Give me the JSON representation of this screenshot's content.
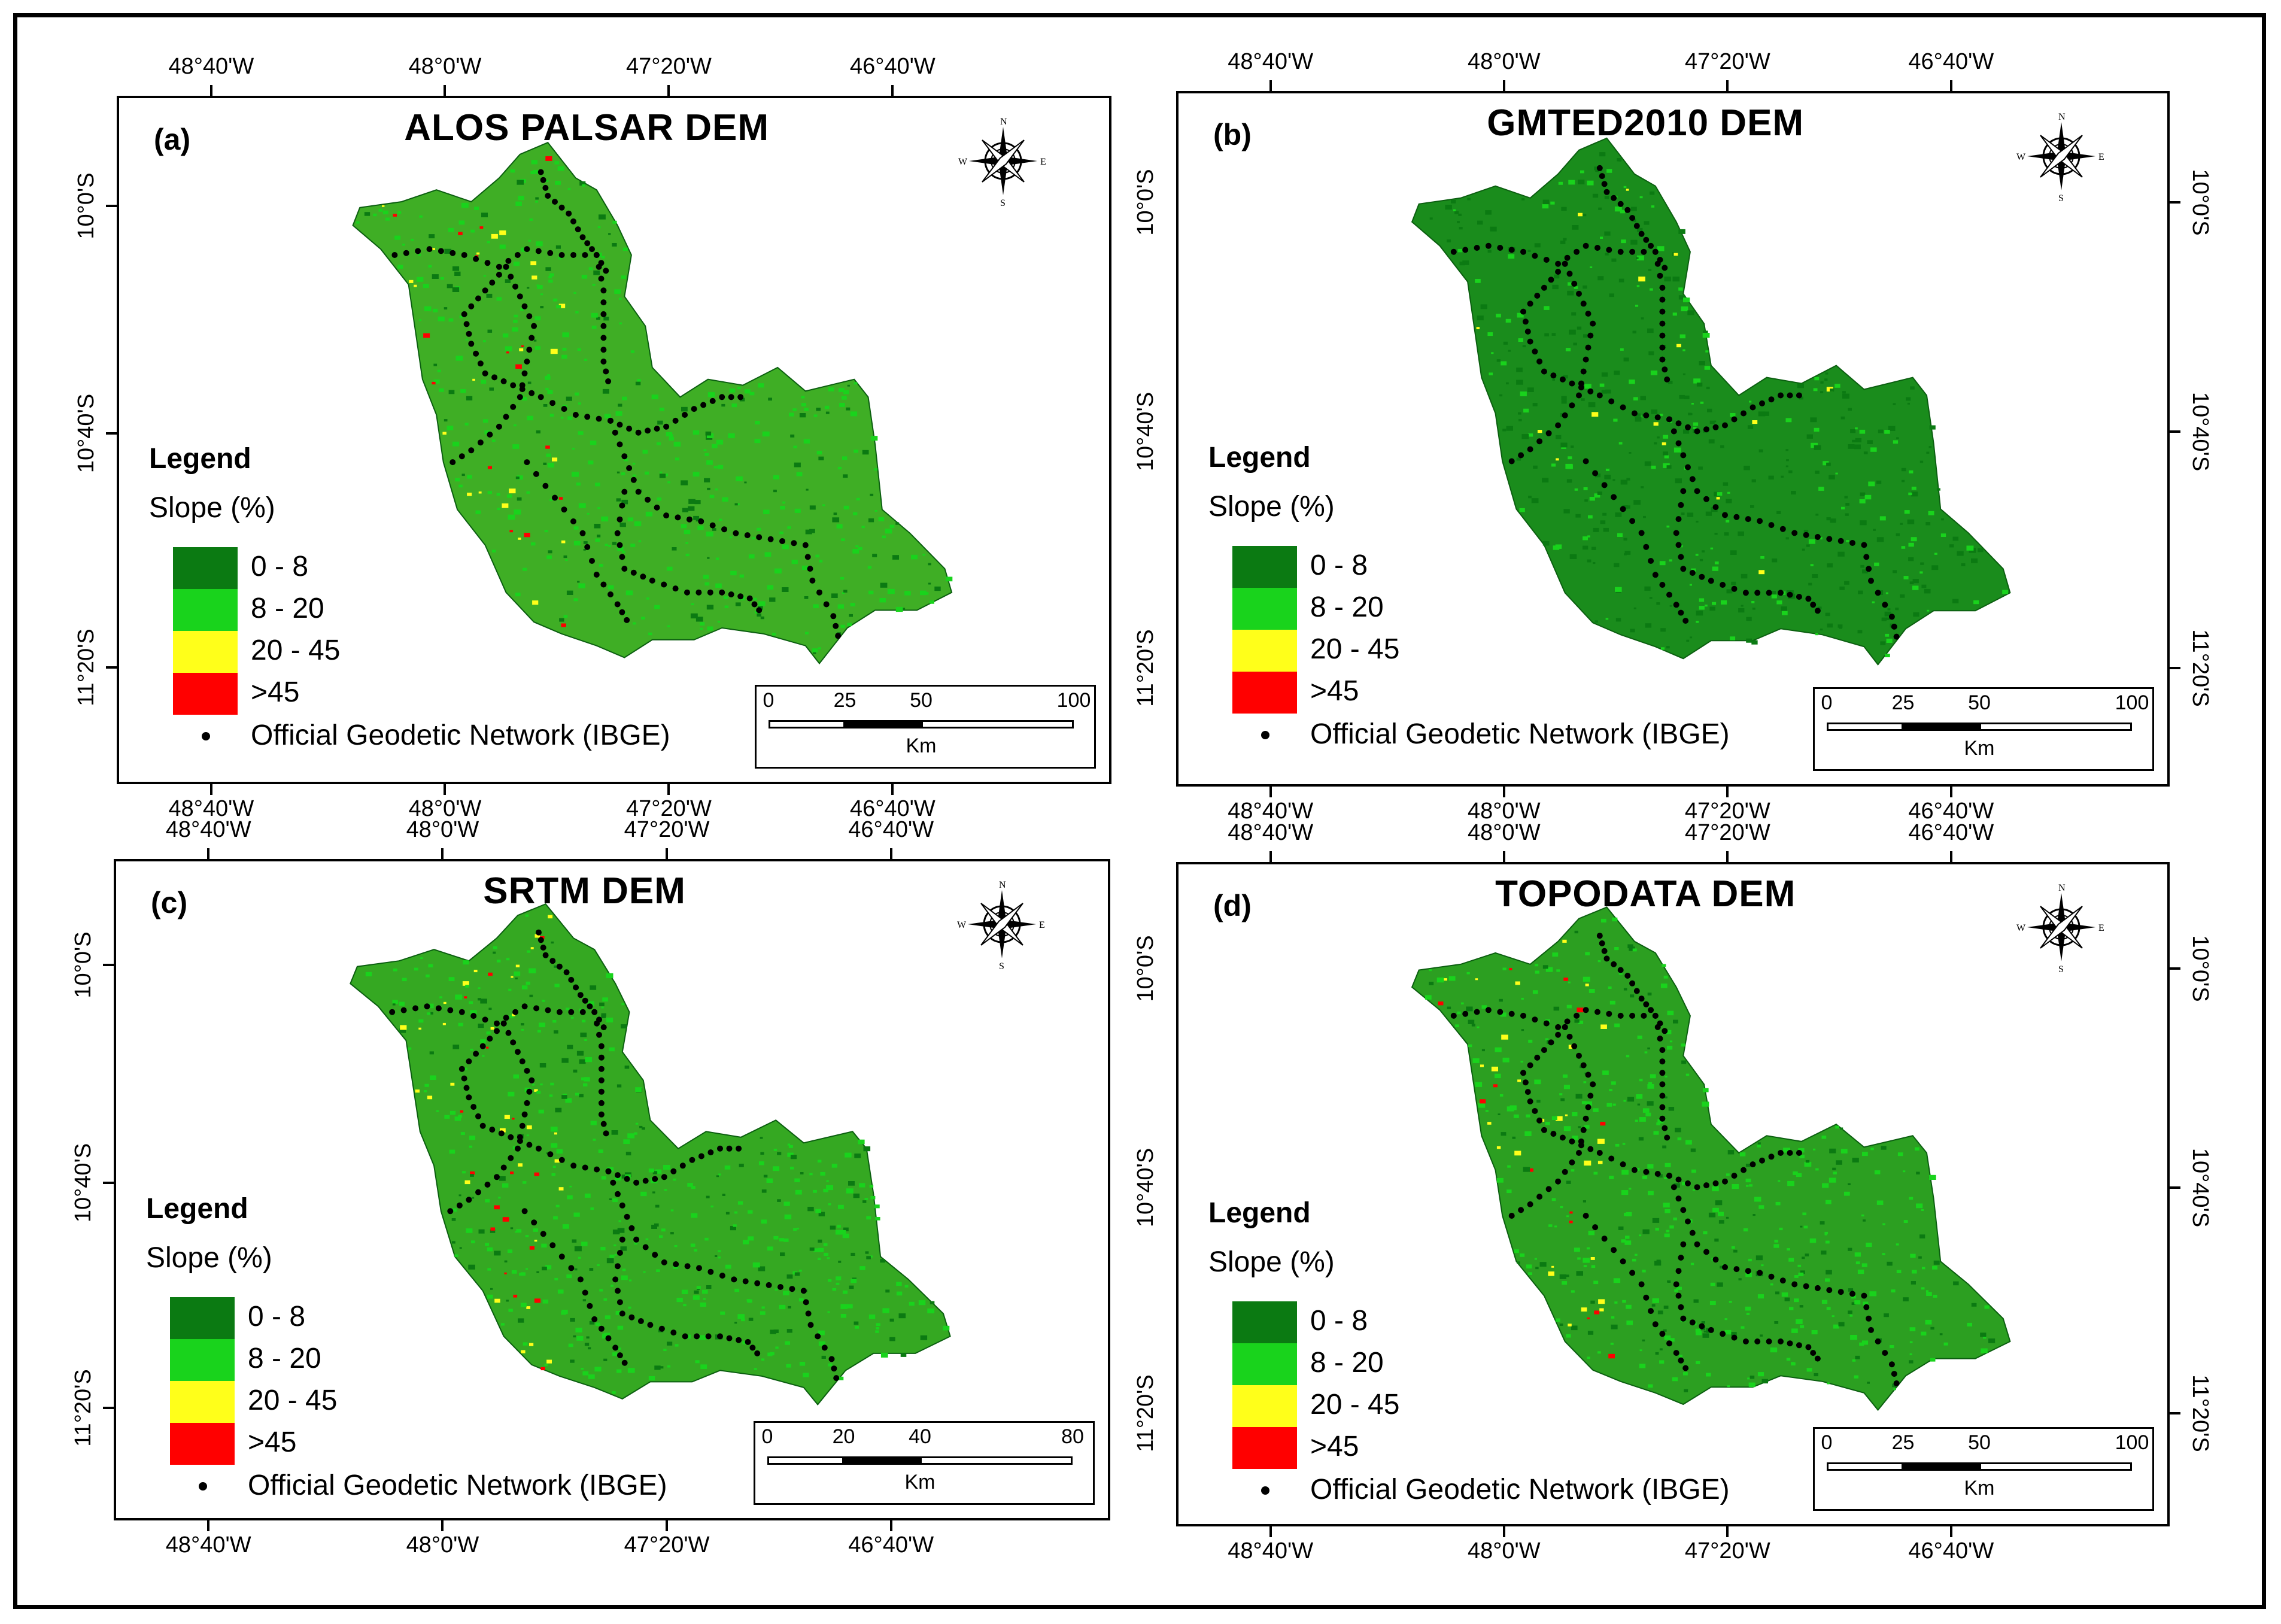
{
  "lon_labels": [
    "48°40'W",
    "48°0'W",
    "47°20'W",
    "46°40'W"
  ],
  "lat_labels": [
    "10°0'S",
    "10°40'S",
    "11°20'S"
  ],
  "legend": {
    "title": "Legend",
    "subtitle": "Slope (%)",
    "classes": [
      {
        "label": "0 - 8",
        "color": "#0b7a12"
      },
      {
        "label": "8 - 20",
        "color": "#19d31c"
      },
      {
        "label": "20 - 45",
        "color": "#ffff1a"
      },
      {
        "label": ">45",
        "color": "#ff0000"
      }
    ],
    "network_label": "Official Geodetic Network (IBGE)"
  },
  "compass": {
    "n": "N",
    "s": "S",
    "e": "E",
    "w": "W"
  },
  "panels": [
    {
      "id": "a",
      "label": "(a)",
      "title": "ALOS PALSAR DEM",
      "scale": [
        "0",
        "25",
        "50",
        "100"
      ],
      "scale_unit": "Km",
      "fill": "#3fae25"
    },
    {
      "id": "b",
      "label": "(b)",
      "title": "GMTED2010 DEM",
      "scale": [
        "0",
        "25",
        "50",
        "100"
      ],
      "scale_unit": "Km",
      "fill": "#1a8c1c"
    },
    {
      "id": "c",
      "label": "(c)",
      "title": "SRTM DEM",
      "scale": [
        "0",
        "20",
        "40",
        "80"
      ],
      "scale_unit": "Km",
      "fill": "#35a822"
    },
    {
      "id": "d",
      "label": "(d)",
      "title": "TOPODATA DEM",
      "scale": [
        "0",
        "25",
        "50",
        "100"
      ],
      "scale_unit": "Km",
      "fill": "#2c9f21"
    }
  ]
}
